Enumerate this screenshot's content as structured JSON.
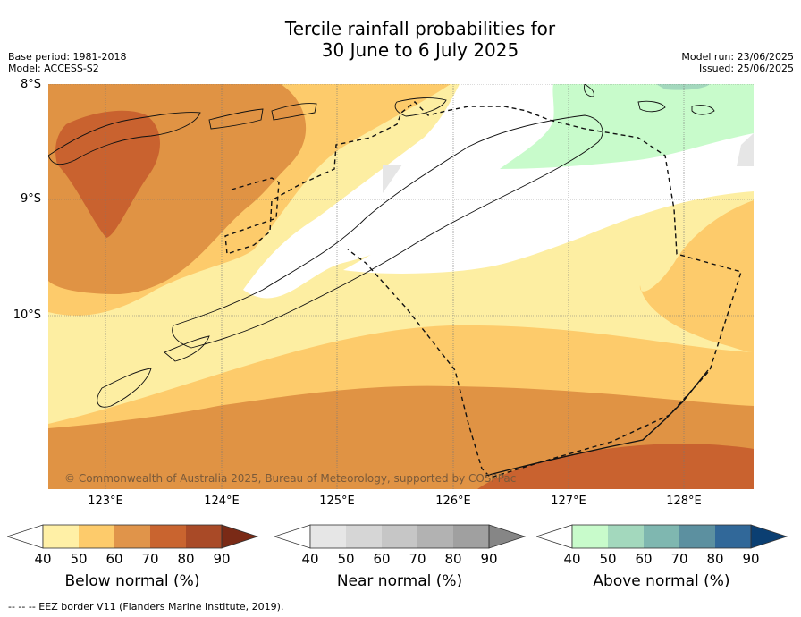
{
  "title": {
    "line1": "Tercile rainfall probabilities for",
    "line2": "30 June to 6 July 2025"
  },
  "meta_left": {
    "base_period": "Base period: 1981-2018",
    "model": "Model: ACCESS-S2"
  },
  "meta_right": {
    "model_run": "Model run: 23/06/2025",
    "issued": "Issued: 25/06/2025"
  },
  "map": {
    "lat_labels": [
      "8°S",
      "9°S",
      "10°S"
    ],
    "lon_labels": [
      "123°E",
      "124°E",
      "125°E",
      "126°E",
      "127°E",
      "128°E"
    ],
    "copyright": "© Commonwealth of Australia 2025, Bureau of Meteorology, supported by COSPPac",
    "colors": {
      "below_40": "#fdeea2",
      "below_50": "#fdcb6b",
      "below_60": "#e09344",
      "below_70": "#c9622f",
      "near_40": "#e6e6e6",
      "above_40": "#c8fbcb",
      "white": "#ffffff"
    }
  },
  "colorbars": [
    {
      "title": "Below normal (%)",
      "ticks": [
        "40",
        "50",
        "60",
        "70",
        "80",
        "90"
      ],
      "colors": [
        "#fff0a6",
        "#fdcb6b",
        "#e0944a",
        "#c9642f",
        "#a94a27",
        "#7a2a16"
      ]
    },
    {
      "title": "Near normal (%)",
      "ticks": [
        "40",
        "50",
        "60",
        "70",
        "80",
        "90"
      ],
      "colors": [
        "#e6e6e6",
        "#d6d6d6",
        "#c6c6c6",
        "#b2b2b2",
        "#a0a0a0",
        "#868686"
      ]
    },
    {
      "title": "Above normal (%)",
      "ticks": [
        "40",
        "50",
        "60",
        "70",
        "80",
        "90"
      ],
      "colors": [
        "#c8fbcb",
        "#a3d8bd",
        "#7fb7b0",
        "#5c90a0",
        "#316899",
        "#0b3f72"
      ]
    }
  ],
  "footer": "--  --  -- EEZ border V11 (Flanders Marine Institute, 2019)."
}
